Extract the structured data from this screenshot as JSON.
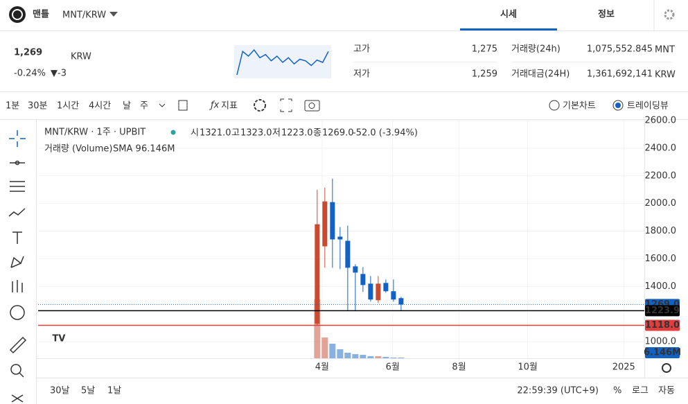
{
  "header": {
    "name": "맨틀",
    "pair": "MNT/KRW",
    "tabs": [
      "시세",
      "정보"
    ]
  },
  "price": {
    "value": "1,269",
    "unit": "KRW",
    "change_rate": "-0.24%",
    "change": "▼-3"
  },
  "sparkline": [
    1180,
    1330,
    1300,
    1340,
    1290,
    1310,
    1270,
    1300,
    1260,
    1290,
    1250,
    1280,
    1270,
    1240,
    1275,
    1260,
    1330
  ],
  "stats": [
    {
      "label": "고가",
      "value": "1,275"
    },
    {
      "label": "저가",
      "value": "1,259"
    },
    {
      "label": "거래량(24h)",
      "value": "1,075,552.845",
      "unit": "MNT"
    },
    {
      "label": "거래대금(24H)",
      "value": "1,361,692,141",
      "unit": "KRW"
    }
  ],
  "toolbar": {
    "intervals": [
      "1분",
      "30분",
      "1시간",
      "4시간",
      "날",
      "주"
    ],
    "indicator": "지표",
    "chart_modes": [
      "기본차트",
      "트레이딩뷰"
    ]
  },
  "chart": {
    "type": "candlestick",
    "title": "MNT/KRW · 1주 · UPBIT",
    "ohlc": [
      {
        "label": "시",
        "value": "1321.0"
      },
      {
        "label": "고",
        "value": "1323.0"
      },
      {
        "label": "저",
        "value": "1223.0"
      },
      {
        "label": "종",
        "value": "1269.0"
      }
    ],
    "change": "-52.0 (-3.94%)",
    "volume_legend": "거래량 (Volume)",
    "sma_label": "SMA 9",
    "sma_value": "6.146M",
    "open": [
      1130,
      1690,
      2010,
      1760,
      1730,
      1545,
      1490,
      1420,
      1300,
      1425,
      1365,
      1315
    ],
    "high": [
      2100,
      2115,
      2180,
      1830,
      1840,
      1560,
      1540,
      1475,
      1475,
      1450,
      1450,
      1325
    ],
    "low": [
      1118,
      1535,
      1535,
      1525,
      1220,
      1220,
      1360,
      1290,
      1280,
      1355,
      1290,
      1225
    ],
    "close": [
      1850,
      2015,
      1740,
      1740,
      1535,
      1500,
      1410,
      1305,
      1420,
      1365,
      1305,
      1269
    ],
    "volume": [
      75.6,
      26.7,
      18.7,
      11.6,
      7.1,
      5.3,
      4.4,
      2.7,
      2.7,
      1.8,
      0.9,
      0.9
    ],
    "up_color": "#c84a31",
    "down_color": "#1261c4",
    "ylim": [
      880,
      2605
    ],
    "yticks": [
      {
        "value": 1000,
        "label": "1000.0"
      },
      {
        "value": 1400,
        "label": "1400.0"
      },
      {
        "value": 1600,
        "label": "1600.0"
      },
      {
        "value": 1800,
        "label": "1800.0"
      },
      {
        "value": 2000,
        "label": "2000.0"
      },
      {
        "value": 2200,
        "label": "2200.0"
      },
      {
        "value": 2400,
        "label": "2400.0"
      },
      {
        "value": 2600,
        "label": "2600.0"
      }
    ],
    "xlim": [
      -36.6,
      42.9
    ],
    "xticks": [
      {
        "value": 0.64,
        "label": "4월"
      },
      {
        "value": 9.9,
        "label": "6월"
      },
      {
        "value": 18.6,
        "label": "8월"
      },
      {
        "value": 27.6,
        "label": "10월"
      },
      {
        "value": 40.2,
        "label": "2025"
      }
    ],
    "price_lines": [
      {
        "value": 1269,
        "label": "1269.0",
        "color": "#1261c4"
      },
      {
        "value": 1223.9,
        "label": "1223.9",
        "color": "#000000"
      },
      {
        "value": 1118,
        "label": "1118.0",
        "color": "#e03e3e"
      }
    ]
  },
  "footer": {
    "ranges": [
      "30날",
      "5날",
      "1날"
    ],
    "time": "22:59:39 (UTC+9)",
    "options": [
      "%",
      "로그",
      "자동"
    ]
  }
}
